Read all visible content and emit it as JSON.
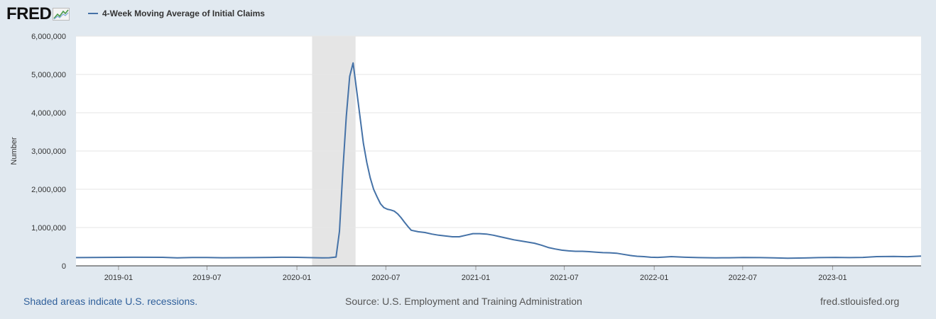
{
  "header": {
    "logo_text": "FRED",
    "legend_label": "4-Week Moving Average of Initial Claims"
  },
  "footer": {
    "recession_note": "Shaded areas indicate U.S. recessions.",
    "source": "Source: U.S. Employment and Training Administration",
    "site": "fred.stlouisfed.org"
  },
  "colors": {
    "series": "#4572a7",
    "recession": "#e5e5e5",
    "grid": "#e6e6e6",
    "page_background": "#e1e9f0",
    "plot_background": "#ffffff"
  },
  "chart_data": {
    "type": "line",
    "ylabel": "Number",
    "xlabel": "",
    "ylim": [
      0,
      6000000
    ],
    "xlim": [
      "2018-10-06",
      "2023-07-01"
    ],
    "y_ticks": [
      0,
      1000000,
      2000000,
      3000000,
      4000000,
      5000000,
      6000000
    ],
    "y_tick_labels": [
      "0",
      "1,000,000",
      "2,000,000",
      "3,000,000",
      "4,000,000",
      "5,000,000",
      "6,000,000"
    ],
    "x_ticks": [
      "2019-01-01",
      "2019-07-01",
      "2020-01-01",
      "2020-07-01",
      "2021-01-01",
      "2021-07-01",
      "2022-01-01",
      "2022-07-01",
      "2023-01-01"
    ],
    "x_tick_labels": [
      "2019-01",
      "2019-07",
      "2020-01",
      "2020-07",
      "2021-01",
      "2021-07",
      "2022-01",
      "2022-07",
      "2023-01"
    ],
    "grid": true,
    "recessions": [
      {
        "start": "2020-02-01",
        "end": "2020-04-30"
      }
    ],
    "series": [
      {
        "x": [
          "2018-10-06",
          "2018-12-01",
          "2019-02-01",
          "2019-04-01",
          "2019-05-01",
          "2019-06-01",
          "2019-07-01",
          "2019-08-01",
          "2019-10-01",
          "2019-12-01",
          "2020-01-01",
          "2020-01-25",
          "2020-02-22",
          "2020-03-07",
          "2020-03-14",
          "2020-03-21",
          "2020-03-28",
          "2020-04-04",
          "2020-04-11",
          "2020-04-18",
          "2020-04-25",
          "2020-05-02",
          "2020-05-09",
          "2020-05-16",
          "2020-05-23",
          "2020-05-30",
          "2020-06-06",
          "2020-06-13",
          "2020-06-20",
          "2020-06-27",
          "2020-07-04",
          "2020-07-11",
          "2020-07-18",
          "2020-07-25",
          "2020-08-01",
          "2020-08-08",
          "2020-08-15",
          "2020-08-22",
          "2020-09-05",
          "2020-09-19",
          "2020-10-03",
          "2020-10-17",
          "2020-10-31",
          "2020-11-14",
          "2020-11-28",
          "2020-12-12",
          "2020-12-26",
          "2021-01-09",
          "2021-01-23",
          "2021-02-06",
          "2021-02-20",
          "2021-03-06",
          "2021-03-20",
          "2021-04-03",
          "2021-04-17",
          "2021-05-01",
          "2021-05-15",
          "2021-05-29",
          "2021-06-12",
          "2021-06-26",
          "2021-07-10",
          "2021-07-24",
          "2021-08-07",
          "2021-08-21",
          "2021-09-04",
          "2021-09-18",
          "2021-10-02",
          "2021-10-16",
          "2021-10-30",
          "2021-11-13",
          "2021-11-27",
          "2021-12-11",
          "2021-12-25",
          "2022-01-08",
          "2022-01-22",
          "2022-02-05",
          "2022-03-05",
          "2022-04-02",
          "2022-05-07",
          "2022-06-04",
          "2022-07-02",
          "2022-08-06",
          "2022-09-03",
          "2022-10-01",
          "2022-11-05",
          "2022-12-03",
          "2023-01-07",
          "2023-02-04",
          "2023-03-04",
          "2023-04-01",
          "2023-05-06",
          "2023-06-03",
          "2023-07-01"
        ],
        "values": [
          215000,
          220000,
          225000,
          222000,
          210000,
          218000,
          218000,
          212000,
          215000,
          225000,
          222000,
          215000,
          210000,
          212000,
          220000,
          230000,
          900000,
          2500000,
          3900000,
          4950000,
          5300000,
          4600000,
          3900000,
          3200000,
          2700000,
          2300000,
          2000000,
          1800000,
          1620000,
          1520000,
          1480000,
          1460000,
          1430000,
          1360000,
          1260000,
          1140000,
          1030000,
          930000,
          890000,
          870000,
          830000,
          800000,
          780000,
          760000,
          760000,
          800000,
          840000,
          840000,
          830000,
          800000,
          760000,
          720000,
          680000,
          650000,
          620000,
          590000,
          540000,
          480000,
          440000,
          410000,
          390000,
          380000,
          380000,
          370000,
          355000,
          345000,
          340000,
          330000,
          300000,
          270000,
          250000,
          240000,
          225000,
          220000,
          230000,
          240000,
          225000,
          215000,
          210000,
          212000,
          218000,
          215000,
          210000,
          200000,
          205000,
          215000,
          220000,
          215000,
          220000,
          240000,
          245000,
          238000,
          255000
        ]
      }
    ]
  }
}
